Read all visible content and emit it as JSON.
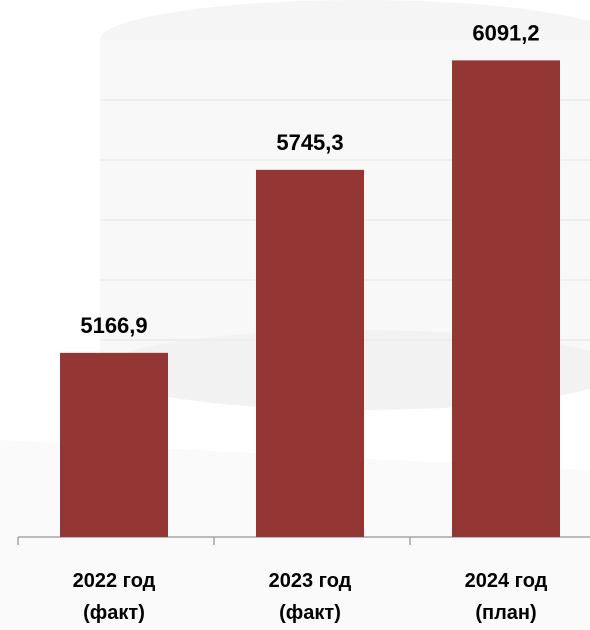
{
  "chart_data": {
    "type": "bar",
    "categories": [
      "2022 год\n(факт)",
      "2023 год\n(факт)",
      "2024 год\n(план)"
    ],
    "values": [
      5166.9,
      5745.3,
      6091.2
    ],
    "value_labels": [
      "5166,9",
      "5745,3",
      "6091,2"
    ],
    "color": "#943634",
    "ylim": [
      4585,
      6282
    ]
  }
}
